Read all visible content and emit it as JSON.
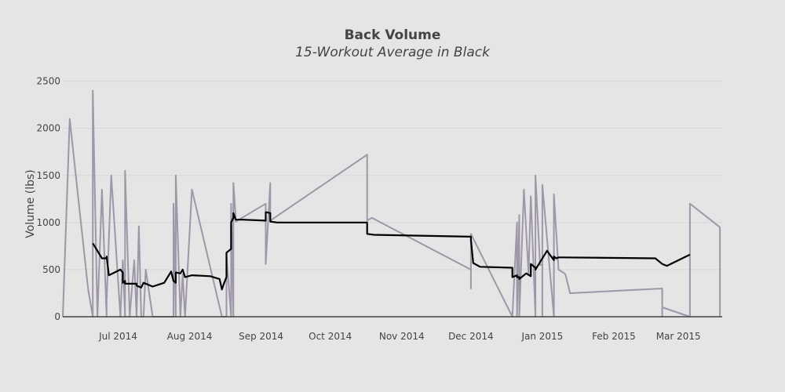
{
  "chart_data": {
    "type": "line",
    "title": "Back Volume",
    "subtitle": "15-Workout Average in Black",
    "xlabel": "",
    "ylabel": "Volume (lbs)",
    "ylim": [
      0,
      2600
    ],
    "xlim": [
      "2014-06-07",
      "2015-03-20"
    ],
    "grid": true,
    "y_ticks": [
      0,
      500,
      1000,
      1500,
      2000,
      2500
    ],
    "x_ticks": [
      {
        "date": "2014-07-01",
        "label": "Jul 2014"
      },
      {
        "date": "2014-08-01",
        "label": "Aug 2014"
      },
      {
        "date": "2014-09-01",
        "label": "Sep 2014"
      },
      {
        "date": "2014-10-01",
        "label": "Oct 2014"
      },
      {
        "date": "2014-11-01",
        "label": "Nov 2014"
      },
      {
        "date": "2014-12-01",
        "label": "Dec 2014"
      },
      {
        "date": "2015-01-01",
        "label": "Jan 2015"
      },
      {
        "date": "2015-02-01",
        "label": "Feb 2015"
      },
      {
        "date": "2015-03-01",
        "label": "Mar 2015"
      }
    ],
    "series": [
      {
        "color": "#9e97a8",
        "x": [
          "2014-06-07",
          "2014-06-10",
          "2014-06-18",
          "2014-06-20",
          "2014-06-20",
          "2014-06-22",
          "2014-06-24",
          "2014-06-26",
          "2014-06-26",
          "2014-06-28",
          "2014-07-02",
          "2014-07-03",
          "2014-07-04",
          "2014-07-04",
          "2014-07-06",
          "2014-07-08",
          "2014-07-09",
          "2014-07-10",
          "2014-07-11",
          "2014-07-12",
          "2014-07-13",
          "2014-07-16",
          "2014-07-18",
          "2014-07-25",
          "2014-07-25",
          "2014-07-26",
          "2014-07-26",
          "2014-07-28",
          "2014-07-29",
          "2014-07-30",
          "2014-08-02",
          "2014-08-15",
          "2014-08-17",
          "2014-08-17",
          "2014-08-19",
          "2014-08-19",
          "2014-08-20",
          "2014-08-20",
          "2014-08-21",
          "2014-08-21",
          "2014-09-03",
          "2014-09-03",
          "2014-09-05",
          "2014-09-05",
          "2014-10-17",
          "2014-10-17",
          "2014-10-19",
          "2014-12-01",
          "2014-12-01",
          "2014-12-01",
          "2014-12-19",
          "2014-12-21",
          "2014-12-21",
          "2014-12-22",
          "2014-12-22",
          "2014-12-24",
          "2014-12-26",
          "2014-12-27",
          "2014-12-29",
          "2014-12-29",
          "2014-12-31",
          "2015-01-01",
          "2015-01-01",
          "2015-01-01",
          "2015-01-06",
          "2015-01-06",
          "2015-01-08",
          "2015-01-10",
          "2015-01-11",
          "2015-01-13",
          "2015-02-22",
          "2015-02-22",
          "2015-02-22",
          "2015-03-06",
          "2015-03-06",
          "2015-03-06",
          "2015-03-19",
          "2015-03-19"
        ],
        "y": [
          0,
          2100,
          290,
          0,
          2400,
          0,
          1350,
          0,
          170,
          1500,
          0,
          600,
          0,
          1550,
          0,
          600,
          0,
          960,
          0,
          0,
          500,
          0,
          0,
          0,
          1200,
          0,
          1500,
          0,
          450,
          0,
          1350,
          0,
          0,
          650,
          0,
          1200,
          0,
          1420,
          1050,
          1010,
          1200,
          560,
          1420,
          1020,
          1720,
          1020,
          1050,
          500,
          300,
          880,
          0,
          1000,
          0,
          1080,
          0,
          1350,
          450,
          1280,
          0,
          1500,
          550,
          550,
          0,
          1400,
          0,
          1300,
          500,
          470,
          450,
          250,
          300,
          0,
          100,
          0,
          0,
          1200,
          950,
          0
        ]
      },
      {
        "color": "#000000",
        "x": [
          "2014-06-20",
          "2014-06-22",
          "2014-06-24",
          "2014-06-26",
          "2014-06-26",
          "2014-06-27",
          "2014-07-02",
          "2014-07-03",
          "2014-07-03",
          "2014-07-04",
          "2014-07-04",
          "2014-07-09",
          "2014-07-09",
          "2014-07-11",
          "2014-07-12",
          "2014-07-16",
          "2014-07-21",
          "2014-07-24",
          "2014-07-25",
          "2014-07-26",
          "2014-07-26",
          "2014-07-28",
          "2014-07-29",
          "2014-07-30",
          "2014-08-02",
          "2014-08-10",
          "2014-08-14",
          "2014-08-15",
          "2014-08-16",
          "2014-08-17",
          "2014-08-17",
          "2014-08-19",
          "2014-08-19",
          "2014-08-20",
          "2014-08-20",
          "2014-08-21",
          "2014-08-21",
          "2014-08-24",
          "2014-09-03",
          "2014-09-03",
          "2014-09-05",
          "2014-09-05",
          "2014-09-08",
          "2014-10-17",
          "2014-10-17",
          "2014-10-20",
          "2014-12-01",
          "2014-12-01",
          "2014-12-02",
          "2014-12-05",
          "2014-12-19",
          "2014-12-19",
          "2014-12-21",
          "2014-12-21",
          "2014-12-22",
          "2014-12-22",
          "2014-12-25",
          "2014-12-27",
          "2014-12-27",
          "2014-12-29",
          "2014-12-29",
          "2014-12-31",
          "2015-01-03",
          "2015-01-06",
          "2015-01-06",
          "2015-01-07",
          "2015-01-07",
          "2015-01-08",
          "2015-01-09",
          "2015-02-19",
          "2015-02-22",
          "2015-02-24",
          "2015-03-06"
        ],
        "y": [
          780,
          700,
          620,
          620,
          640,
          440,
          500,
          470,
          360,
          380,
          350,
          350,
          330,
          310,
          360,
          320,
          360,
          480,
          380,
          360,
          470,
          460,
          500,
          420,
          440,
          430,
          400,
          290,
          360,
          420,
          680,
          720,
          1000,
          1050,
          1100,
          1030,
          1030,
          1030,
          1020,
          1110,
          1100,
          1010,
          1000,
          1000,
          880,
          870,
          850,
          820,
          570,
          530,
          520,
          420,
          440,
          420,
          420,
          400,
          460,
          430,
          560,
          520,
          500,
          580,
          700,
          600,
          640,
          620,
          620,
          630,
          630,
          620,
          560,
          540,
          660
        ]
      }
    ]
  }
}
